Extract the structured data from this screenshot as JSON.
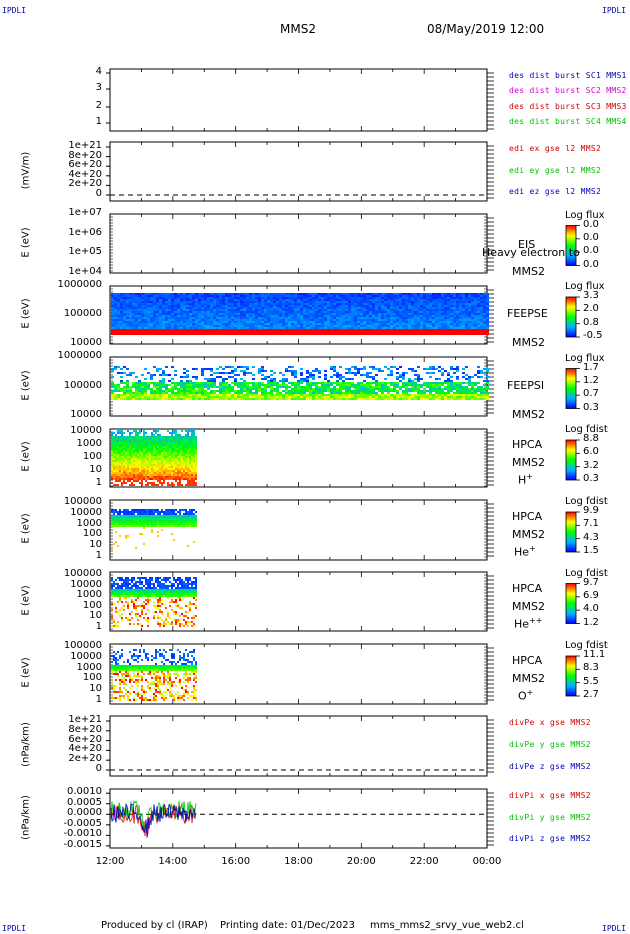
{
  "corners": {
    "label": "IPDLI"
  },
  "header": {
    "spacecraft": "MMS2",
    "datetime": "08/May/2019 12:00"
  },
  "footer": {
    "produced_by": "Produced by cl (IRAP)",
    "printing_date": "Printing date: 01/Dec/2023",
    "file": "mms_mms2_srvy_vue_web2.cl"
  },
  "colors": {
    "c1": "#0000c0",
    "c2": "#d000d0",
    "c3": "#d00000",
    "c4": "#00c000",
    "red": "#d00000",
    "green": "#00c000",
    "blue": "#0000c0"
  },
  "chart_data": [
    {
      "id": "burst",
      "type": "line",
      "yticks": [
        "4",
        "3",
        "2",
        "1"
      ],
      "legend": [
        {
          "text": "des dist burst SC1 MMS1",
          "color": "#0000c0"
        },
        {
          "text": "des dist burst SC2 MMS2",
          "color": "#d000d0"
        },
        {
          "text": "des dist burst SC3 MMS3",
          "color": "#d00000"
        },
        {
          "text": "des dist burst SC4 MMS4",
          "color": "#00c000"
        }
      ]
    },
    {
      "id": "edi",
      "type": "line",
      "ylabel": "(mV/m)",
      "yticks": [
        "1e+21",
        "8e+20",
        "6e+20",
        "4e+20",
        "2e+20",
        "0"
      ],
      "ylim": [
        0,
        1e+21
      ],
      "legend": [
        {
          "text": "edi ex gse l2 MMS2",
          "color": "#d00000"
        },
        {
          "text": "edi ey gse l2 MMS2",
          "color": "#00c000"
        },
        {
          "text": "edi ez gse l2 MMS2",
          "color": "#0000c0"
        }
      ]
    },
    {
      "id": "eis",
      "type": "heatmap",
      "ylabel": "E (eV)",
      "yticks": [
        "1e+07",
        "1e+06",
        "1e+05",
        "1e+04"
      ],
      "instrument": [
        "EIS",
        "MMS2"
      ],
      "overlay": "Heavy electron to",
      "colorbar": {
        "title": "Log flux",
        "ticks": [
          "0.0",
          "0.0",
          "0.0",
          "0.0"
        ]
      }
    },
    {
      "id": "feepse",
      "type": "heatmap",
      "ylabel": "E (eV)",
      "yticks": [
        "1000000",
        "100000",
        "10000"
      ],
      "instrument": [
        "FEEPSE",
        "MMS2"
      ],
      "colorbar": {
        "title": "Log flux",
        "ticks": [
          "3.3",
          "2.0",
          "0.8",
          "-0.5"
        ]
      }
    },
    {
      "id": "feepsi",
      "type": "heatmap",
      "ylabel": "E (eV)",
      "yticks": [
        "1000000",
        "100000",
        "10000"
      ],
      "instrument": [
        "FEEPSI",
        "MMS2"
      ],
      "colorbar": {
        "title": "Log flux",
        "ticks": [
          "1.7",
          "1.2",
          "0.7",
          "0.3"
        ]
      }
    },
    {
      "id": "hpca_h",
      "type": "heatmap",
      "ylabel": "E (eV)",
      "yticks": [
        "10000",
        "1000",
        "100",
        "10",
        "1"
      ],
      "instrument": [
        "HPCA",
        "MMS2"
      ],
      "species": "H",
      "species_sup": "+",
      "colorbar": {
        "title": "Log fdist",
        "ticks": [
          "8.8",
          "6.0",
          "3.2",
          "0.3"
        ]
      }
    },
    {
      "id": "hpca_he",
      "type": "heatmap",
      "ylabel": "E (eV)",
      "yticks": [
        "100000",
        "10000",
        "1000",
        "100",
        "10",
        "1"
      ],
      "instrument": [
        "HPCA",
        "MMS2"
      ],
      "species": "He",
      "species_sup": "+",
      "colorbar": {
        "title": "Log fdist",
        "ticks": [
          "9.9",
          "7.1",
          "4.3",
          "1.5"
        ]
      }
    },
    {
      "id": "hpca_he2",
      "type": "heatmap",
      "ylabel": "E (eV)",
      "yticks": [
        "100000",
        "10000",
        "1000",
        "100",
        "10",
        "1"
      ],
      "instrument": [
        "HPCA",
        "MMS2"
      ],
      "species": "He",
      "species_sup": "++",
      "colorbar": {
        "title": "Log fdist",
        "ticks": [
          "9.7",
          "6.9",
          "4.0",
          "1.2"
        ]
      }
    },
    {
      "id": "hpca_o",
      "type": "heatmap",
      "ylabel": "E (eV)",
      "yticks": [
        "100000",
        "10000",
        "1000",
        "100",
        "10",
        "1"
      ],
      "instrument": [
        "HPCA",
        "MMS2"
      ],
      "species": "O",
      "species_sup": "+",
      "colorbar": {
        "title": "Log fdist",
        "ticks": [
          "11.1",
          "8.3",
          "5.5",
          "2.7"
        ]
      }
    },
    {
      "id": "divpe",
      "type": "line",
      "ylabel": "(nPa/km)",
      "yticks": [
        "1e+21",
        "8e+20",
        "6e+20",
        "4e+20",
        "2e+20",
        "0"
      ],
      "ylim": [
        0,
        1e+21
      ],
      "legend": [
        {
          "text": "divPe x gse MMS2",
          "color": "#d00000"
        },
        {
          "text": "divPe y gse MMS2",
          "color": "#00c000"
        },
        {
          "text": "divPe z gse MMS2",
          "color": "#0000c0"
        }
      ]
    },
    {
      "id": "divpi",
      "type": "line",
      "ylabel": "(nPa/km)",
      "yticks": [
        "0.0010",
        "0.0005",
        "0.0000",
        "-0.0005",
        "-0.0010",
        "-0.0015"
      ],
      "ylim": [
        -0.0016,
        0.0012
      ],
      "legend": [
        {
          "text": "divPi x gse MMS2",
          "color": "#d00000"
        },
        {
          "text": "divPi y gse MMS2",
          "color": "#00c000"
        },
        {
          "text": "divPi z gse MMS2",
          "color": "#0000c0"
        }
      ]
    }
  ],
  "xaxis": {
    "ticks": [
      "12:00",
      "14:00",
      "16:00",
      "18:00",
      "20:00",
      "22:00",
      "00:00"
    ]
  }
}
